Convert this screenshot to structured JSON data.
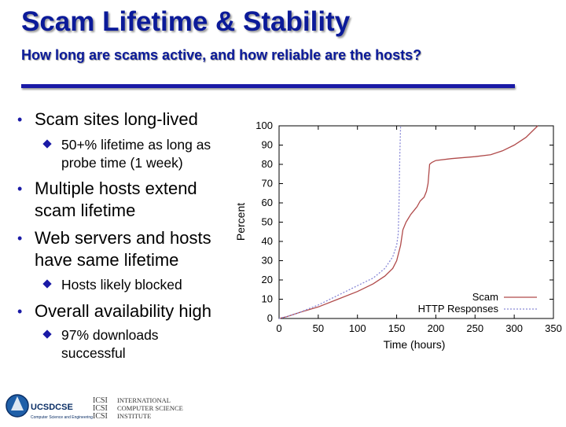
{
  "header": {
    "title": "Scam Lifetime & Stability",
    "subtitle": "How long are scams active, and how reliable are the hosts?"
  },
  "bullets": [
    {
      "level": 1,
      "text": "Scam sites long-lived",
      "top": 0
    },
    {
      "level": 2,
      "text": "50+% lifetime as long as probe time (1 week)"
    },
    {
      "level": 1,
      "text": "Multiple hosts extend scam lifetime"
    },
    {
      "level": 1,
      "text": "Web servers and hosts have same lifetime"
    },
    {
      "level": 2,
      "text": "Hosts likely blocked"
    },
    {
      "level": 1,
      "text": "Overall availability high"
    },
    {
      "level": 2,
      "text": "97% downloads successful"
    }
  ],
  "logos": {
    "ucsd_text": "UCSDCSE",
    "ucsd_tagline": "Computer Science and Engineering",
    "icsi_line1": "INTERNATIONAL",
    "icsi_line2": "COMPUTER SCIENCE",
    "icsi_line3": "INSTITUTE",
    "icsi_mark": "ICSI"
  },
  "chart_data": {
    "type": "line",
    "xlabel": "Time (hours)",
    "ylabel": "Percent",
    "xlim": [
      0,
      350
    ],
    "ylim": [
      0,
      100
    ],
    "xticks": [
      0,
      50,
      100,
      150,
      200,
      250,
      300,
      350
    ],
    "yticks": [
      0,
      10,
      20,
      30,
      40,
      50,
      60,
      70,
      80,
      90,
      100
    ],
    "grid": false,
    "legend_position": "bottom-right",
    "series": [
      {
        "name": "Scam",
        "color": "#b04a4a",
        "dash": "solid",
        "x": [
          0,
          10,
          25,
          50,
          75,
          100,
          120,
          135,
          145,
          150,
          155,
          158,
          162,
          165,
          168,
          172,
          176,
          180,
          185,
          188,
          190,
          191,
          192,
          195,
          200,
          220,
          250,
          270,
          285,
          300,
          315,
          325,
          330
        ],
        "y": [
          0,
          1,
          3,
          6,
          10,
          14,
          18,
          22,
          26,
          30,
          38,
          46,
          50,
          52,
          54,
          56,
          58,
          61,
          63,
          66,
          70,
          75,
          80,
          81,
          82,
          83,
          84,
          85,
          87,
          90,
          94,
          98,
          100
        ]
      },
      {
        "name": "HTTP Responses",
        "color": "#8a8ad8",
        "dash": "dotted",
        "x": [
          0,
          10,
          25,
          50,
          75,
          100,
          120,
          135,
          145,
          150,
          152,
          153,
          154,
          155
        ],
        "y": [
          0,
          1,
          3,
          7,
          12,
          17,
          21,
          26,
          32,
          38,
          44,
          60,
          85,
          100
        ]
      }
    ]
  },
  "colors": {
    "title": "#0b1a99",
    "rule": "#1a1aa6",
    "bullet": "#1a1aa6"
  }
}
